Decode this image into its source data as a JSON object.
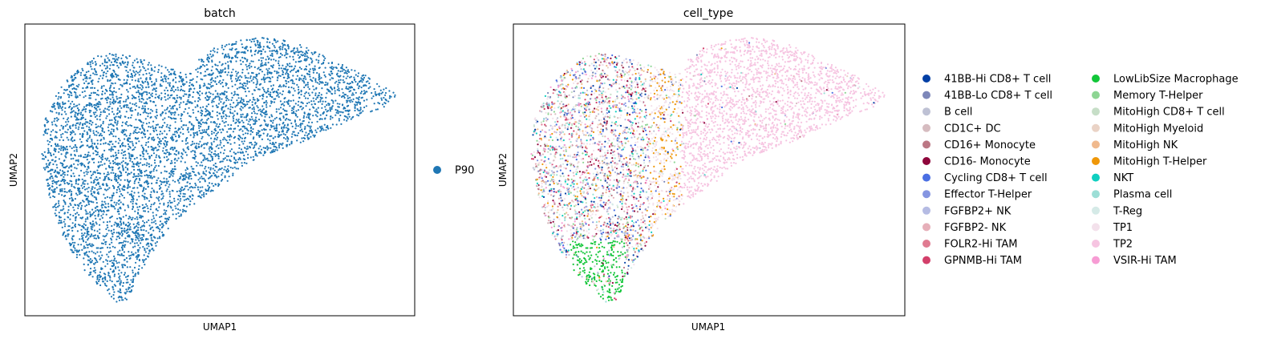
{
  "chart_data": [
    {
      "type": "scatter",
      "title": "batch",
      "xlabel": "UMAP1",
      "ylabel": "UMAP2",
      "ticks": false,
      "grid": false,
      "legend": {
        "placement": "right",
        "entries": [
          {
            "label": "P90",
            "color": "#1f77b4"
          }
        ]
      },
      "series": [
        {
          "name": "P90",
          "color": "#1f77b4"
        }
      ],
      "note_points": "~6000 cells, UMAP embedding of a single batch"
    },
    {
      "type": "scatter",
      "title": "cell_type",
      "xlabel": "UMAP1",
      "ylabel": "UMAP2",
      "ticks": false,
      "grid": false,
      "legend": {
        "placement": "right",
        "columns": 2,
        "entries": [
          {
            "label": "41BB-Hi CD8+ T cell",
            "color": "#023fa5"
          },
          {
            "label": "41BB-Lo CD8+ T cell",
            "color": "#7d87b9"
          },
          {
            "label": "B cell",
            "color": "#bec1d4"
          },
          {
            "label": "CD1C+ DC",
            "color": "#d6bcc0"
          },
          {
            "label": "CD16+ Monocyte",
            "color": "#bb7784"
          },
          {
            "label": "CD16- Monocyte",
            "color": "#8e063b"
          },
          {
            "label": "Cycling CD8+ T cell",
            "color": "#4a6fe3"
          },
          {
            "label": "Effector T-Helper",
            "color": "#8595e1"
          },
          {
            "label": "FGFBP2+ NK",
            "color": "#b5bbe3"
          },
          {
            "label": "FGFBP2- NK",
            "color": "#e6afb9"
          },
          {
            "label": "FOLR2-Hi TAM",
            "color": "#e07b91"
          },
          {
            "label": "GPNMB-Hi TAM",
            "color": "#d33f6a"
          },
          {
            "label": "LowLibSize Macrophage",
            "color": "#11c638"
          },
          {
            "label": "Memory T-Helper",
            "color": "#8dd593"
          },
          {
            "label": "MitoHigh CD8+ T cell",
            "color": "#c6dec7"
          },
          {
            "label": "MitoHigh Myeloid",
            "color": "#ead3c6"
          },
          {
            "label": "MitoHigh NK",
            "color": "#f0b98d"
          },
          {
            "label": "MitoHigh T-Helper",
            "color": "#ef9708"
          },
          {
            "label": "NKT",
            "color": "#0fcfc0"
          },
          {
            "label": "Plasma cell",
            "color": "#9cded6"
          },
          {
            "label": "T-Reg",
            "color": "#d5eae7"
          },
          {
            "label": "TP1",
            "color": "#f3e1eb"
          },
          {
            "label": "TP2",
            "color": "#f6c4e1"
          },
          {
            "label": "VSIR-Hi TAM",
            "color": "#f79cd4"
          }
        ]
      }
    }
  ]
}
